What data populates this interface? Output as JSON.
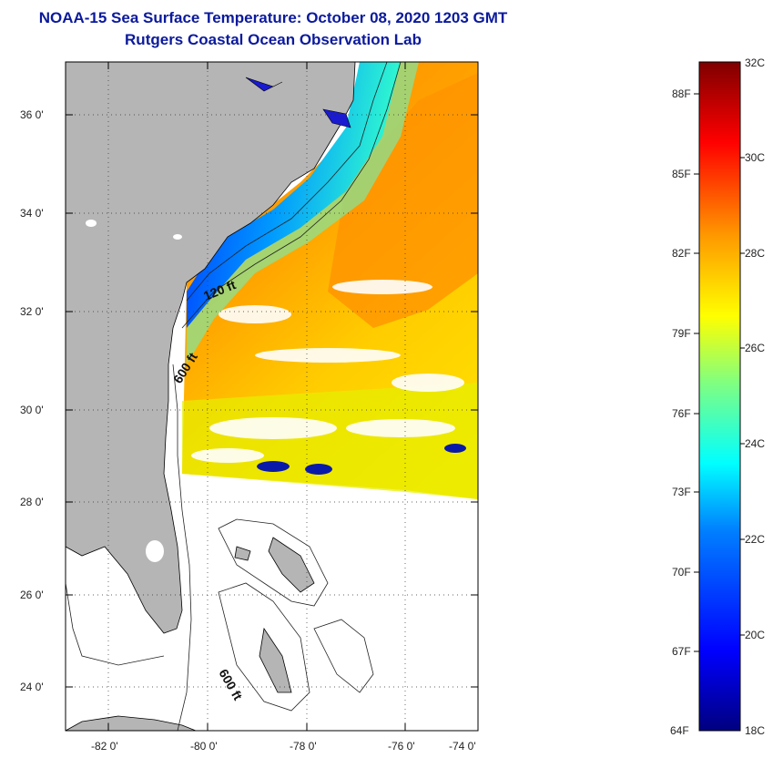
{
  "title": {
    "line1": "NOAA-15 Sea Surface Temperature:  October 08, 2020 1203 GMT",
    "line2": "Rutgers Coastal Ocean Observation Lab"
  },
  "map": {
    "lat_labels": [
      "36 0'",
      "34 0'",
      "32 0'",
      "30 0'",
      "28 0'",
      "26 0'",
      "24 0'"
    ],
    "lon_labels": [
      "-82 0'",
      "-80 0'",
      "-78 0'",
      "-76 0'",
      "-74 0'"
    ],
    "isobath_labels": [
      "120 ft",
      "600 ft",
      "600 ft"
    ],
    "land_color": "#b5b5b5"
  },
  "colorbar": {
    "top_label": "32C",
    "bottom_left_label": "64F",
    "bottom_right_label": "18C",
    "fahrenheit": [
      "88F",
      "85F",
      "82F",
      "79F",
      "76F",
      "73F",
      "70F",
      "67F"
    ],
    "celsius": [
      "30C",
      "28C",
      "26C",
      "24C",
      "22C",
      "20C"
    ],
    "colors": [
      "#00007f",
      "#0000ff",
      "#007fff",
      "#00ffff",
      "#7fff7f",
      "#ffff00",
      "#ff7f00",
      "#ff0000",
      "#7f0000"
    ]
  }
}
